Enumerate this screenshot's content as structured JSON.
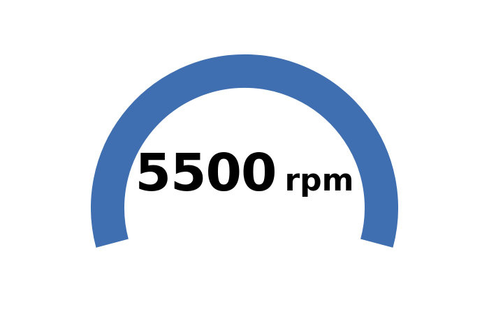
{
  "chart_data": {
    "type": "gauge",
    "value": 5500,
    "unit": "rpm",
    "value_label": "5500",
    "colors": {
      "arc": "#3f6fb0",
      "text": "#000000",
      "background": "#ffffff"
    }
  }
}
